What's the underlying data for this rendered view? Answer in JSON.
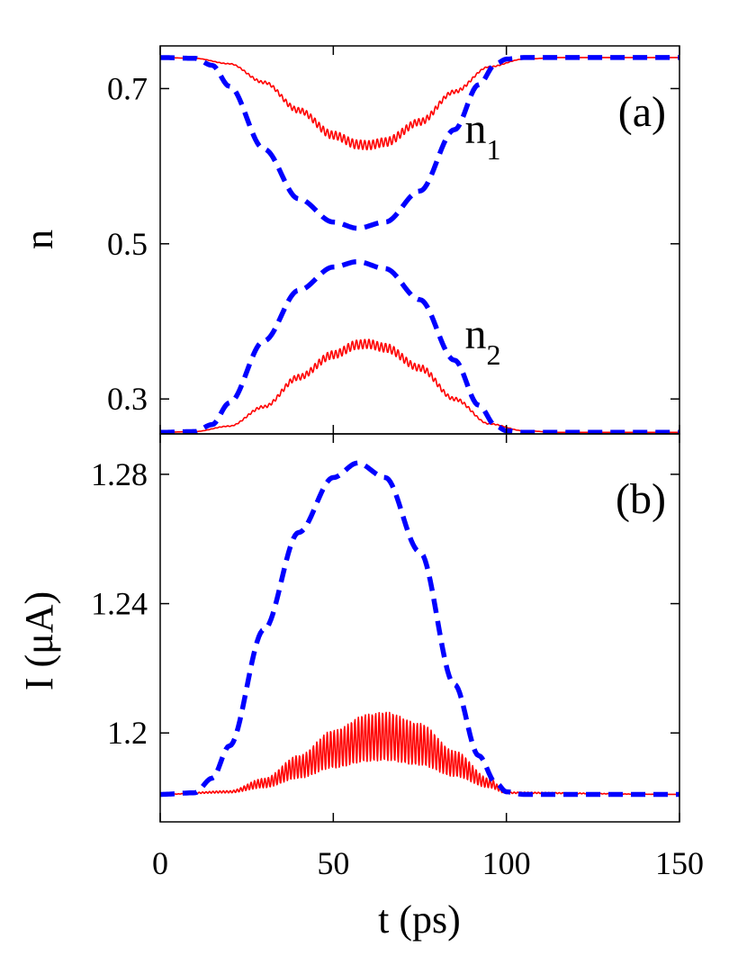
{
  "chart_data": [
    {
      "panel": "(a)",
      "type": "line",
      "ylabel": "n",
      "xlim": [
        0,
        150
      ],
      "ylim": [
        0.255,
        0.755
      ],
      "yticks": [
        0.3,
        0.5,
        0.7
      ],
      "ytick_labels": [
        "0.3",
        "0.5",
        "0.7"
      ],
      "grid": false,
      "annotations": [
        {
          "main": "n",
          "sub": "1",
          "x": 88,
          "y": 0.63
        },
        {
          "main": "n",
          "sub": "2",
          "x": 88,
          "y": 0.365
        }
      ],
      "series": [
        {
          "color": "#ff0000",
          "style": "solid",
          "osc": 0.006,
          "osc_period": 1.2,
          "x": [
            0,
            10,
            20,
            30,
            40,
            50,
            57,
            60,
            65,
            75,
            85,
            95,
            105,
            115,
            150
          ],
          "y": [
            0.74,
            0.739,
            0.732,
            0.708,
            0.672,
            0.64,
            0.628,
            0.627,
            0.631,
            0.657,
            0.696,
            0.728,
            0.738,
            0.74,
            0.74
          ]
        },
        {
          "color": "#0000ff",
          "style": "dashed",
          "x": [
            0,
            10,
            15,
            20,
            30,
            40,
            50,
            57,
            65,
            75,
            85,
            92,
            97,
            100,
            105,
            150
          ],
          "y": [
            0.74,
            0.739,
            0.73,
            0.703,
            0.622,
            0.558,
            0.528,
            0.52,
            0.528,
            0.568,
            0.647,
            0.705,
            0.732,
            0.738,
            0.74,
            0.74
          ]
        },
        {
          "color": "#ff0000",
          "style": "solid",
          "osc": 0.006,
          "osc_period": 1.2,
          "x": [
            0,
            10,
            20,
            30,
            40,
            50,
            57,
            60,
            65,
            75,
            85,
            95,
            105,
            115,
            150
          ],
          "y": [
            0.257,
            0.258,
            0.265,
            0.29,
            0.328,
            0.357,
            0.37,
            0.371,
            0.366,
            0.34,
            0.3,
            0.268,
            0.259,
            0.257,
            0.257
          ]
        },
        {
          "color": "#0000ff",
          "style": "dashed",
          "x": [
            0,
            10,
            15,
            20,
            30,
            40,
            50,
            57,
            65,
            75,
            85,
            92,
            97,
            100,
            105,
            150
          ],
          "y": [
            0.257,
            0.258,
            0.267,
            0.295,
            0.375,
            0.44,
            0.47,
            0.477,
            0.468,
            0.428,
            0.35,
            0.292,
            0.265,
            0.259,
            0.257,
            0.257
          ]
        }
      ]
    },
    {
      "panel": "(b)",
      "type": "line",
      "xlabel": "t (ps)",
      "ylabel": "I (μA)",
      "xlim": [
        0,
        150
      ],
      "ylim": [
        1.1725,
        1.2925
      ],
      "xticks": [
        0,
        50,
        100,
        150
      ],
      "xtick_labels": [
        "0",
        "50",
        "100",
        "150"
      ],
      "yticks": [
        1.2,
        1.24,
        1.28
      ],
      "ytick_labels": [
        "1.2",
        "1.24",
        "1.28"
      ],
      "grid": false,
      "series": [
        {
          "color": "#ff0000",
          "style": "solid",
          "osc_env": 0.0075,
          "osc_period": 1.0,
          "x": [
            0,
            20,
            30,
            40,
            50,
            60,
            65,
            75,
            85,
            95,
            100,
            150
          ],
          "y": [
            1.181,
            1.1818,
            1.1845,
            1.1895,
            1.195,
            1.1985,
            1.199,
            1.1965,
            1.1905,
            1.1845,
            1.1815,
            1.181
          ]
        },
        {
          "color": "#0000ff",
          "style": "dashed",
          "x": [
            0,
            10,
            15,
            20,
            30,
            40,
            50,
            57,
            65,
            75,
            85,
            92,
            97,
            100,
            105,
            150
          ],
          "y": [
            1.181,
            1.1815,
            1.186,
            1.196,
            1.232,
            1.262,
            1.279,
            1.2835,
            1.279,
            1.256,
            1.215,
            1.193,
            1.1845,
            1.1818,
            1.181,
            1.181
          ]
        }
      ]
    }
  ]
}
